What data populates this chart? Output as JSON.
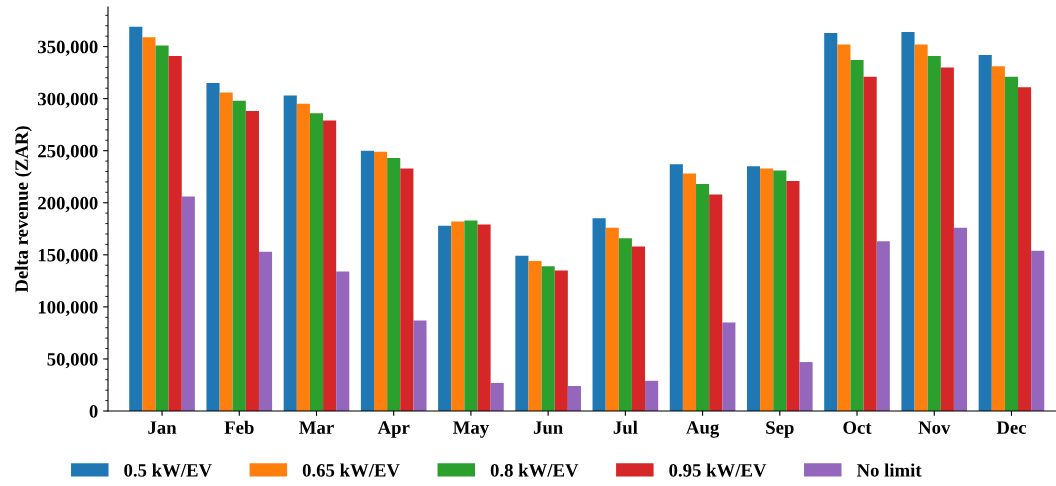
{
  "chart_data": {
    "type": "bar",
    "categories": [
      "Jan",
      "Feb",
      "Mar",
      "Apr",
      "May",
      "Jun",
      "Jul",
      "Aug",
      "Sep",
      "Oct",
      "Nov",
      "Dec"
    ],
    "series": [
      {
        "name": "0.5 kW/EV",
        "color": "#1f77b4",
        "values": [
          369000,
          315000,
          303000,
          250000,
          178000,
          149000,
          185000,
          237000,
          235000,
          363000,
          364000,
          342000
        ]
      },
      {
        "name": "0.65 kW/EV",
        "color": "#ff7f0e",
        "values": [
          359000,
          306000,
          295000,
          249000,
          182000,
          144000,
          176000,
          228000,
          233000,
          352000,
          352000,
          331000
        ]
      },
      {
        "name": "0.8 kW/EV",
        "color": "#2ca02c",
        "values": [
          351000,
          298000,
          286000,
          243000,
          183000,
          139000,
          166000,
          218000,
          231000,
          337000,
          341000,
          321000
        ]
      },
      {
        "name": "0.95 kW/EV",
        "color": "#d62728",
        "values": [
          341000,
          288000,
          279000,
          233000,
          179000,
          135000,
          158000,
          208000,
          221000,
          321000,
          330000,
          311000
        ]
      },
      {
        "name": "No limit",
        "color": "#9467bd",
        "values": [
          206000,
          153000,
          134000,
          87000,
          27000,
          24000,
          29000,
          85000,
          47000,
          163000,
          176000,
          154000
        ]
      }
    ],
    "ylabel": "Delta revenue (ZAR)",
    "ylim": [
      0,
      388000
    ],
    "yticks": [
      0,
      {
        "value": 50000,
        "label": "50,000"
      },
      {
        "value": 100000,
        "label": "100,000"
      },
      {
        "value": 150000,
        "label": "150,000"
      },
      {
        "value": 200000,
        "label": "200,000"
      },
      {
        "value": 250000,
        "label": "250,000"
      },
      {
        "value": 300000,
        "label": "300,000"
      },
      {
        "value": 350000,
        "label": "350,000"
      }
    ],
    "legend": "bottom"
  }
}
